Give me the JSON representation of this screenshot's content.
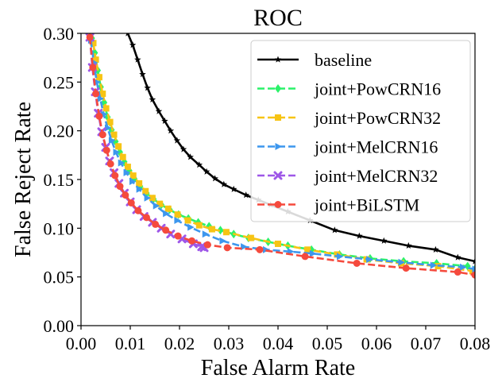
{
  "chart_data": {
    "type": "line",
    "title": "ROC",
    "xlabel": "False Alarm Rate",
    "ylabel": "False Reject Rate",
    "xlim": [
      0.0,
      0.08
    ],
    "ylim": [
      0.0,
      0.3
    ],
    "xticks": [
      "0.00",
      "0.01",
      "0.02",
      "0.03",
      "0.04",
      "0.05",
      "0.06",
      "0.07",
      "0.08"
    ],
    "yticks": [
      "0.00",
      "0.05",
      "0.10",
      "0.15",
      "0.20",
      "0.25",
      "0.30"
    ],
    "grid": false,
    "legend_position": "top-right",
    "series": [
      {
        "name": "baseline",
        "color": "#000000",
        "linestyle": "solid",
        "marker": "star",
        "x": [
          0.0095,
          0.0105,
          0.0115,
          0.0125,
          0.0135,
          0.0145,
          0.0158,
          0.017,
          0.0182,
          0.0195,
          0.0208,
          0.0222,
          0.024,
          0.0255,
          0.0272,
          0.029,
          0.031,
          0.0335,
          0.036,
          0.0385,
          0.042,
          0.0465,
          0.0515,
          0.0565,
          0.0615,
          0.0665,
          0.072,
          0.0765,
          0.08
        ],
        "y": [
          0.3,
          0.288,
          0.273,
          0.258,
          0.244,
          0.232,
          0.22,
          0.21,
          0.2,
          0.19,
          0.181,
          0.173,
          0.165,
          0.158,
          0.151,
          0.145,
          0.14,
          0.134,
          0.129,
          0.124,
          0.117,
          0.108,
          0.098,
          0.092,
          0.087,
          0.082,
          0.078,
          0.07,
          0.066
        ]
      },
      {
        "name": "joint+PowCRN16",
        "color": "#2bf26a",
        "linestyle": "dashed",
        "marker": "diamond",
        "x": [
          0.0022,
          0.0028,
          0.0034,
          0.004,
          0.0047,
          0.0054,
          0.0062,
          0.007,
          0.0079,
          0.0088,
          0.0098,
          0.0108,
          0.012,
          0.0133,
          0.0147,
          0.0163,
          0.018,
          0.0198,
          0.0218,
          0.0238,
          0.026,
          0.0283,
          0.031,
          0.034,
          0.038,
          0.042,
          0.0468,
          0.0525,
          0.0587,
          0.0655,
          0.0722,
          0.0785,
          0.08
        ],
        "y": [
          0.295,
          0.28,
          0.262,
          0.245,
          0.229,
          0.214,
          0.201,
          0.189,
          0.178,
          0.168,
          0.159,
          0.151,
          0.143,
          0.136,
          0.13,
          0.124,
          0.119,
          0.114,
          0.11,
          0.106,
          0.102,
          0.098,
          0.094,
          0.09,
          0.086,
          0.082,
          0.078,
          0.073,
          0.069,
          0.066,
          0.064,
          0.061,
          0.058
        ]
      },
      {
        "name": "joint+PowCRN32",
        "color": "#f7c414",
        "linestyle": "dashed",
        "marker": "square",
        "x": [
          0.0025,
          0.003,
          0.0037,
          0.0044,
          0.0051,
          0.0059,
          0.0067,
          0.0076,
          0.0085,
          0.0095,
          0.0106,
          0.0118,
          0.0131,
          0.0145,
          0.016,
          0.0177,
          0.0196,
          0.0217,
          0.024,
          0.0266,
          0.0295,
          0.0345,
          0.04,
          0.046,
          0.052,
          0.058,
          0.065,
          0.0725,
          0.0795
        ],
        "y": [
          0.29,
          0.273,
          0.255,
          0.238,
          0.223,
          0.209,
          0.196,
          0.184,
          0.173,
          0.163,
          0.154,
          0.146,
          0.138,
          0.131,
          0.125,
          0.12,
          0.114,
          0.108,
          0.103,
          0.099,
          0.096,
          0.09,
          0.084,
          0.078,
          0.073,
          0.068,
          0.064,
          0.061,
          0.056
        ]
      },
      {
        "name": "joint+MelCRN16",
        "color": "#3d97ee",
        "linestyle": "dashed",
        "marker": "triangle-right",
        "x": [
          0.002,
          0.0026,
          0.0032,
          0.0039,
          0.0046,
          0.0054,
          0.0062,
          0.0071,
          0.0081,
          0.0092,
          0.0104,
          0.0118,
          0.0134,
          0.0152,
          0.0172,
          0.0195,
          0.0222,
          0.0252,
          0.0287,
          0.033,
          0.0375,
          0.0425,
          0.047,
          0.0525,
          0.0585,
          0.065,
          0.0715,
          0.0775,
          0.08
        ],
        "y": [
          0.293,
          0.27,
          0.25,
          0.233,
          0.217,
          0.203,
          0.19,
          0.178,
          0.167,
          0.157,
          0.148,
          0.14,
          0.131,
          0.123,
          0.115,
          0.108,
          0.101,
          0.094,
          0.087,
          0.081,
          0.078,
          0.076,
          0.074,
          0.071,
          0.068,
          0.065,
          0.062,
          0.06,
          0.058
        ]
      },
      {
        "name": "joint+MelCRN32",
        "color": "#9e57e8",
        "linestyle": "dashed",
        "marker": "x",
        "x": [
          0.0018,
          0.0023,
          0.0029,
          0.0035,
          0.0042,
          0.005,
          0.0058,
          0.0067,
          0.0077,
          0.0088,
          0.01,
          0.0113,
          0.0128,
          0.0145,
          0.0163,
          0.0182,
          0.0205,
          0.0228,
          0.0245,
          0.025
        ],
        "y": [
          0.296,
          0.265,
          0.24,
          0.218,
          0.199,
          0.183,
          0.169,
          0.157,
          0.146,
          0.136,
          0.127,
          0.119,
          0.112,
          0.106,
          0.1,
          0.094,
          0.089,
          0.084,
          0.081,
          0.08
        ]
      },
      {
        "name": "joint+BiLSTM",
        "color": "#f54a3d",
        "linestyle": "dashed",
        "marker": "circle",
        "x": [
          0.0018,
          0.0024,
          0.003,
          0.0037,
          0.0044,
          0.0052,
          0.006,
          0.0069,
          0.0079,
          0.009,
          0.0102,
          0.0116,
          0.0133,
          0.0151,
          0.0172,
          0.0197,
          0.0225,
          0.0257,
          0.0297,
          0.0363,
          0.0455,
          0.056,
          0.066,
          0.0765,
          0.08
        ],
        "y": [
          0.296,
          0.265,
          0.238,
          0.215,
          0.196,
          0.18,
          0.166,
          0.154,
          0.143,
          0.134,
          0.126,
          0.118,
          0.111,
          0.104,
          0.098,
          0.092,
          0.087,
          0.083,
          0.08,
          0.078,
          0.071,
          0.064,
          0.059,
          0.055,
          0.052
        ]
      }
    ]
  }
}
